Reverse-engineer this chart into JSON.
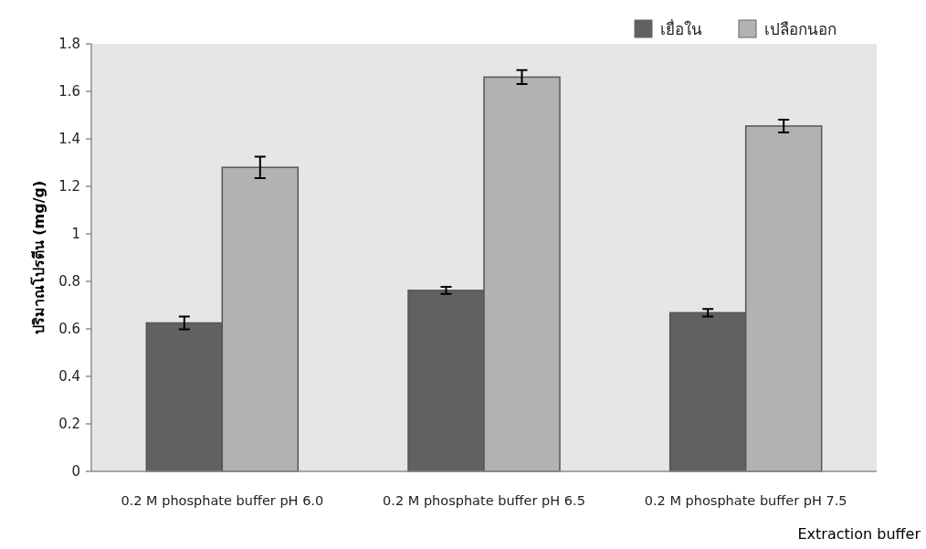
{
  "chart_data": {
    "type": "bar",
    "xlabel": "Extraction buffer",
    "ylabel": "ปริมาณโปรตีน (mg/g)",
    "categories": [
      "0.2 M phosphate buffer pH 6.0",
      "0.2 M phosphate buffer pH 6.5",
      "0.2 M phosphate buffer pH 7.5"
    ],
    "series": [
      {
        "name": "เยื่อใน",
        "color": "#616161",
        "values": [
          0.625,
          0.762,
          0.668
        ],
        "errors": [
          0.027,
          0.015,
          0.016
        ]
      },
      {
        "name": "เปลือกนอก",
        "color": "#b2b2b2",
        "values": [
          1.28,
          1.66,
          1.454
        ],
        "errors": [
          0.045,
          0.029,
          0.027
        ]
      }
    ],
    "ylim": [
      0,
      1.8
    ],
    "yticks": [
      0,
      0.2,
      0.4,
      0.6,
      0.8,
      1,
      1.2,
      1.4,
      1.6,
      1.8
    ],
    "legend": "top right",
    "grid": false
  }
}
